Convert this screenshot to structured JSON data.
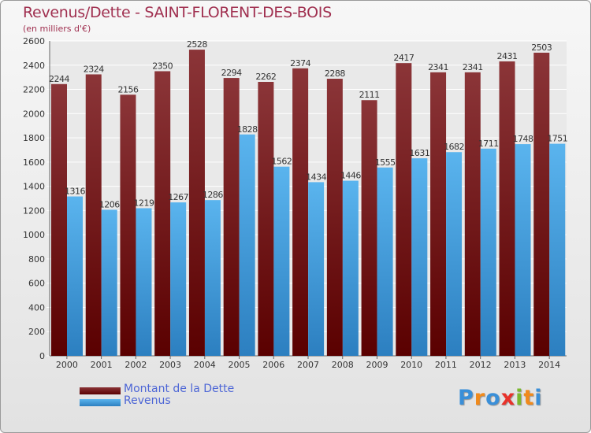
{
  "header": {
    "title": "Revenus/Dette - SAINT-FLORENT-DES-BOIS",
    "subtitle": "(en milliers d'€)"
  },
  "colors": {
    "debt_top": "#8b3538",
    "debt_bottom": "#5a0000",
    "revenue_top": "#5ab4ee",
    "revenue_bottom": "#2c7fc0",
    "title": "#a03050",
    "legend_text": "#4d66d6"
  },
  "chart_data": {
    "type": "bar",
    "title": "Revenus/Dette - SAINT-FLORENT-DES-BOIS",
    "subtitle": "(en milliers d'€)",
    "xlabel": "",
    "ylabel": "",
    "ylim": [
      0,
      2600
    ],
    "yticks": [
      0,
      200,
      400,
      600,
      800,
      1000,
      1200,
      1400,
      1600,
      1800,
      2000,
      2200,
      2400,
      2600
    ],
    "grid": true,
    "legend_position": "bottom-left",
    "categories": [
      "2000",
      "2001",
      "2002",
      "2003",
      "2004",
      "2005",
      "2006",
      "2007",
      "2008",
      "2009",
      "2010",
      "2011",
      "2012",
      "2013",
      "2014"
    ],
    "series": [
      {
        "name": "Montant de la Dette",
        "values": [
          2244,
          2324,
          2156,
          2350,
          2528,
          2294,
          2262,
          2374,
          2288,
          2111,
          2417,
          2341,
          2341,
          2431,
          2503
        ]
      },
      {
        "name": "Revenus",
        "values": [
          1316,
          1206,
          1219,
          1267,
          1286,
          1828,
          1562,
          1434,
          1446,
          1555,
          1631,
          1682,
          1711,
          1748,
          1751
        ]
      }
    ]
  },
  "legend": {
    "items": [
      {
        "label": "Montant de la Dette",
        "color_top": "#8b3538",
        "color_bottom": "#5a0000"
      },
      {
        "label": "Revenus",
        "color_top": "#5ab4ee",
        "color_bottom": "#2c7fc0"
      }
    ]
  },
  "logo": {
    "text": "Proxiti",
    "letters": [
      {
        "char": "P",
        "color": "#3a8fd8"
      },
      {
        "char": "r",
        "color": "#f08a1c"
      },
      {
        "char": "o",
        "color": "#3a8fd8"
      },
      {
        "char": "x",
        "color": "#e8322a"
      },
      {
        "char": "i",
        "color": "#7ab82e"
      },
      {
        "char": "t",
        "color": "#f08a1c"
      },
      {
        "char": "i",
        "color": "#3a8fd8"
      }
    ]
  }
}
